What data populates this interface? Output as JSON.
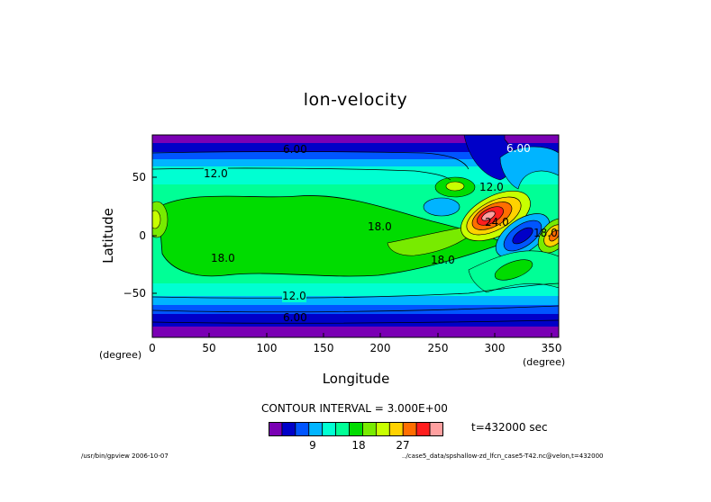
{
  "chart_data": {
    "type": "contour",
    "title": "lon-velocity",
    "xlabel": "Longitude",
    "ylabel": "Latitude",
    "x_unit_left": "(degree)",
    "x_unit_right": "(degree)",
    "xlim": [
      0,
      356
    ],
    "ylim": [
      -87,
      87
    ],
    "x_ticks": [
      "0",
      "50",
      "100",
      "150",
      "200",
      "250",
      "300",
      "350"
    ],
    "y_ticks": [
      "50",
      "0",
      "−50"
    ],
    "contour_labels": [
      "6.00",
      "12.0",
      "18.0",
      "18.0",
      "18.0",
      "12.0",
      "6.00",
      "12.0",
      "6.00",
      "24.0",
      "18.0"
    ],
    "contour_interval": "CONTOUR INTERVAL = 3.000E+00",
    "time_label": "t=432000 sec",
    "colorbar": {
      "colors": [
        "#7a00b4",
        "#0000c8",
        "#0055ff",
        "#00b4ff",
        "#00ffd2",
        "#00ff96",
        "#00dc00",
        "#78eb00",
        "#c8ff00",
        "#ffd200",
        "#ff6e00",
        "#ff1e1e",
        "#ffa0a0"
      ],
      "tick_labels": [
        "9",
        "18",
        "27"
      ]
    }
  },
  "footer": {
    "left": "/usr/bin/gpview  2006-10-07",
    "right": "../case5_data/spshallow-zd_lfcn_case5-T42.nc@velon,t=432000"
  }
}
